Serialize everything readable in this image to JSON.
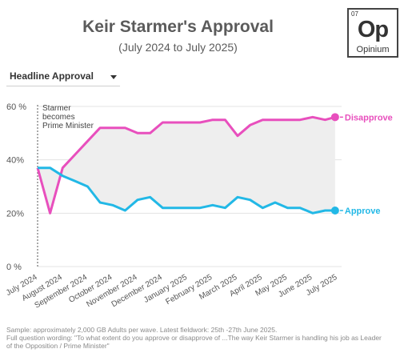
{
  "header": {
    "title": "Keir Starmer's Approval",
    "subtitle": "(July 2024 to July 2025)"
  },
  "logo": {
    "number": "07",
    "symbol": "Op",
    "name": "Opinium"
  },
  "dropdown": {
    "selected": "Headline Approval"
  },
  "footer": {
    "line1": "Sample: approximately 2,000 GB Adults per wave. Latest fieldwork: 25th -27th June 2025.",
    "line2": "Full question wording: \"To what extent do you approve or disapprove of ...The way Keir Starmer is handling his job as Leader",
    "line3": "of the Opposition / Prime Minister\""
  },
  "colors": {
    "disapprove": "#e84fbd",
    "approve": "#22b8e6",
    "shade": "#eeeeee"
  },
  "chart_data": {
    "type": "line",
    "title": "Keir Starmer's Approval",
    "subtitle": "(July 2024 to July 2025)",
    "ylim": [
      0,
      60
    ],
    "y_ticks": [
      "0 %",
      "20%",
      "40%",
      "60 %"
    ],
    "y_tick_values": [
      0,
      20,
      40,
      60
    ],
    "x_range": [
      0,
      12
    ],
    "categories": [
      "July 2024",
      "August 2024",
      "September 2024",
      "October 2024",
      "November 2024",
      "December 2024",
      "January 2025",
      "February 2025",
      "March 2025",
      "April 2025",
      "May 2025",
      "June 2025",
      "July 2025"
    ],
    "annotation": {
      "text": [
        "Starmer",
        "becomes",
        "Prime Minister"
      ],
      "x": 0
    },
    "series": [
      {
        "name": "Disapprove",
        "x": [
          0,
          0.5,
          1,
          1.5,
          2,
          2.5,
          3,
          3.5,
          4,
          4.5,
          5,
          5.5,
          6,
          6.5,
          7,
          7.5,
          8,
          8.5,
          9,
          9.5,
          10,
          10.5,
          11,
          11.5,
          11.9
        ],
        "values": [
          37,
          20,
          37,
          42,
          47,
          52,
          52,
          52,
          50,
          50,
          54,
          54,
          54,
          54,
          55,
          55,
          49,
          53,
          55,
          55,
          55,
          55,
          56,
          55,
          56
        ]
      },
      {
        "name": "Approve",
        "x": [
          0,
          0.5,
          1,
          1.5,
          2,
          2.5,
          3,
          3.5,
          4,
          4.5,
          5,
          5.5,
          6,
          6.5,
          7,
          7.5,
          8,
          8.5,
          9,
          9.5,
          10,
          10.5,
          11,
          11.5,
          11.9
        ],
        "values": [
          37,
          37,
          34,
          32,
          30,
          24,
          23,
          21,
          25,
          26,
          22,
          22,
          22,
          22,
          23,
          22,
          26,
          25,
          22,
          24,
          22,
          22,
          20,
          21,
          21
        ]
      }
    ]
  }
}
